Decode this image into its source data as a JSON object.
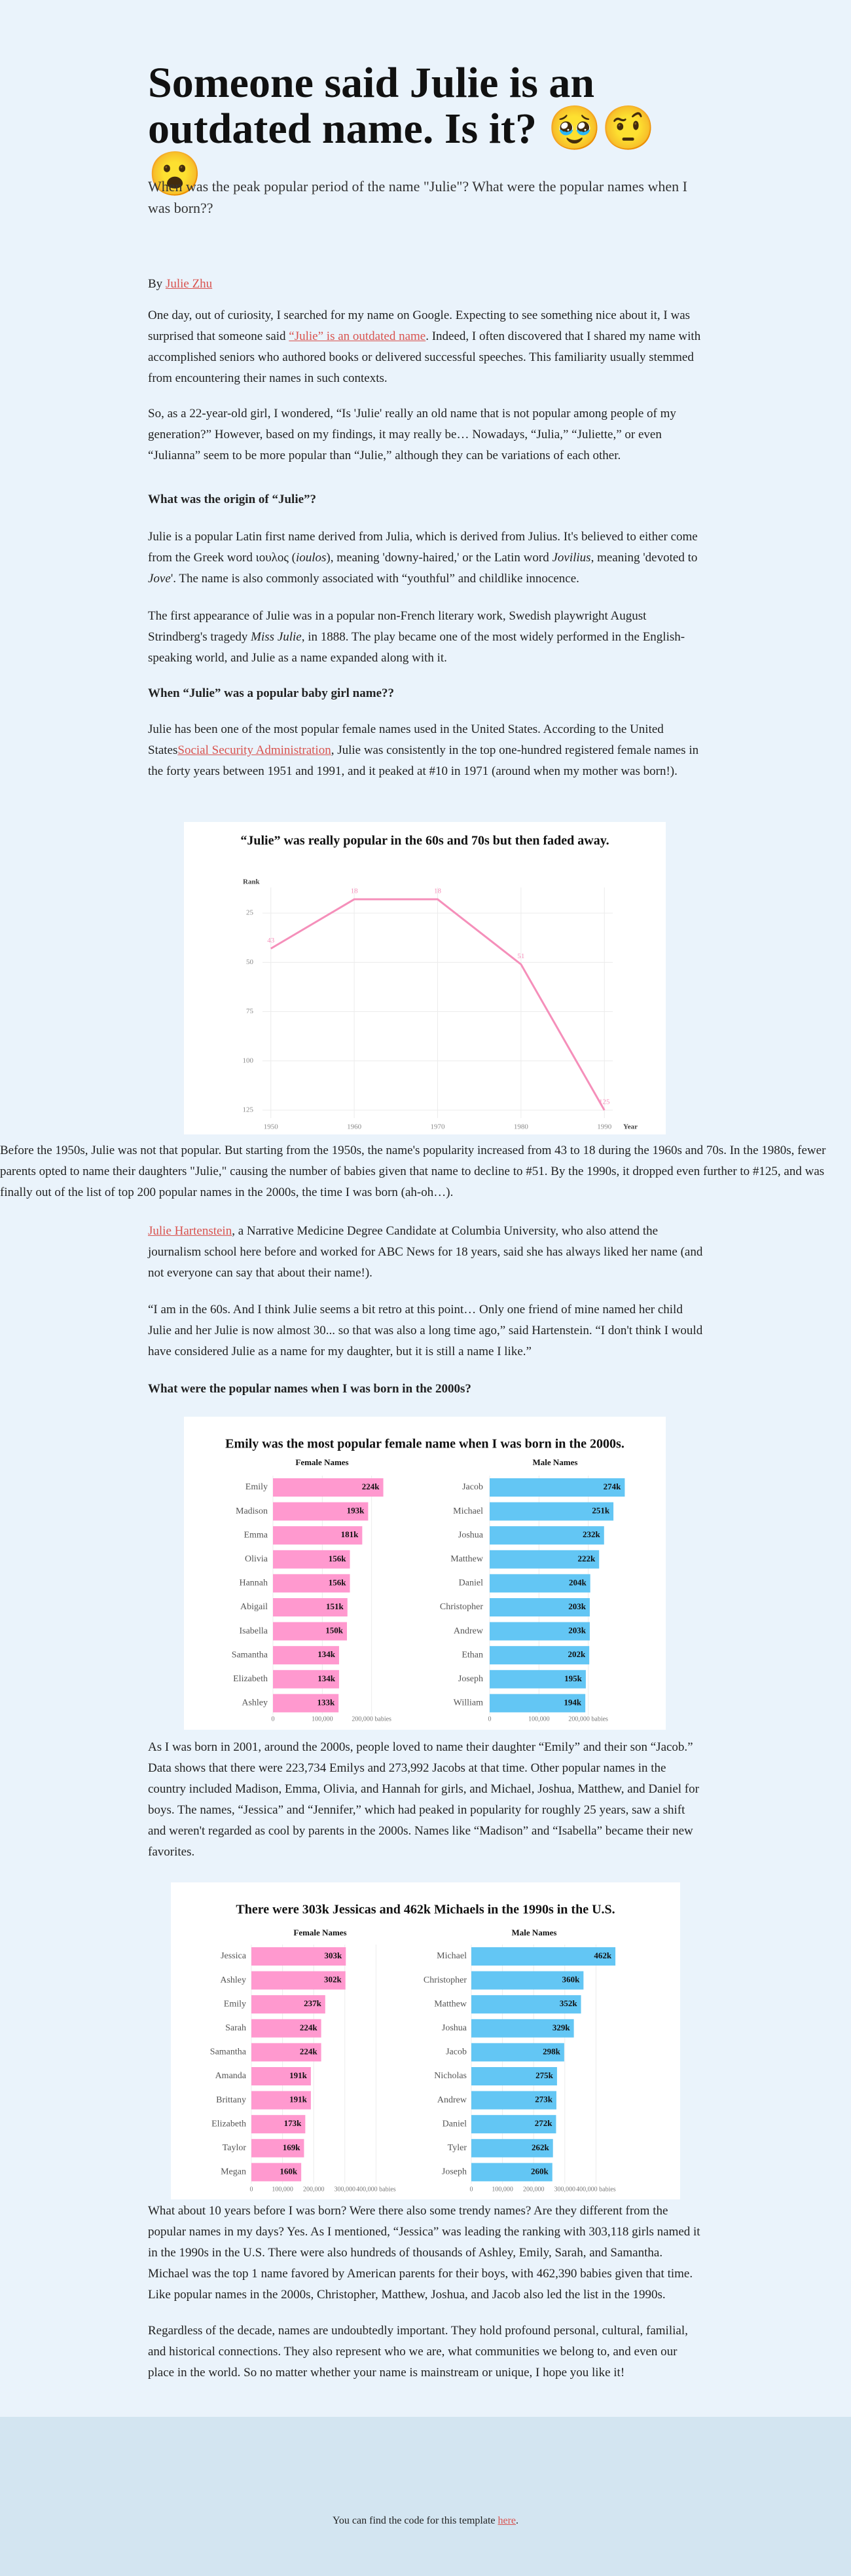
{
  "header": {
    "title": "Someone said Julie is an outdated name. Is it? 🥹🤨😮",
    "subtitle": "When was the peak popular period of the name \"Julie\"? What were the popular names when I was born??"
  },
  "byline": [
    {
      "text": "By "
    },
    {
      "text": "Julie Zhu",
      "style": "link"
    }
  ],
  "headings": [
    "What was the origin of “Julie”?",
    "When “Julie” was a popular baby girl name??",
    "What were the popular names when I was born in the 2000s?"
  ],
  "paragraphs": [
    [
      {
        "text": "One day, out of curiosity, I searched for my name on Google. Expecting to see something nice about it, I was surprised that someone said "
      },
      {
        "text": "“Julie” is an outdated name",
        "style": "link"
      },
      {
        "text": ". Indeed, I often discovered that I shared my name with accomplished seniors who authored books or delivered successful speeches. This familiarity usually stemmed from encountering their names in such contexts."
      }
    ],
    [
      {
        "text": "So, as a 22-year-old girl, I wondered, “Is 'Julie' really an old name that is not popular among people of my generation?” However, based on my findings, it may really be… Nowadays, “Julia,” “Juliette,” or even “Julianna” seem to be more popular than “Julie,” although they can be variations of each other."
      }
    ],
    [
      {
        "text": "Julie is a popular Latin first name derived from Julia, which is derived from Julius. It's believed to either come from the Greek word ιουλος ("
      },
      {
        "text": "ioulos",
        "style": "italic"
      },
      {
        "text": "), meaning 'downy-haired,' or the Latin word "
      },
      {
        "text": "Jovilius",
        "style": "italic"
      },
      {
        "text": ", meaning 'devoted to "
      },
      {
        "text": "Jove",
        "style": "italic"
      },
      {
        "text": "'. The name is also commonly associated with “youthful” and childlike innocence."
      }
    ],
    [
      {
        "text": "The first appearance of Julie was in a popular non-French literary work, Swedish playwright August Strindberg's tragedy "
      },
      {
        "text": "Miss Julie",
        "style": "italic"
      },
      {
        "text": ", in 1888. The play became one of the most widely performed in the English-speaking world, and Julie as a name expanded along with it."
      }
    ],
    [
      {
        "text": "Julie has been one of the most popular female names used in the United States. According to the United States"
      },
      {
        "text": "Social Security Administration",
        "style": "link"
      },
      {
        "text": ", Julie was consistently in the top one-hundred registered female names in the forty years between 1951 and 1991, and it peaked at #10 in 1971 (around when my mother was born!)."
      }
    ],
    [
      {
        "text": "Before the 1950s, Julie was not that popular. But starting from the 1950s, the name's popularity increased from 43 to 18 during the 1960s and 70s. In the 1980s, fewer parents opted to name their daughters \"Julie,\" causing the number of babies given that name to decline to #51. By the 1990s, it dropped even further to #125, and was finally out of the list of top 200 popular names in the 2000s, the time I was born (ah-oh…)."
      }
    ],
    [
      {
        "text": "Julie Hartenstein",
        "style": "link"
      },
      {
        "text": ", a Narrative Medicine Degree Candidate at Columbia University, who also attend the journalism school here before and worked for ABC News for 18 years, said she has always liked her name (and not everyone can say that about their name!)."
      }
    ],
    [
      {
        "text": "“I am in the 60s. And I think Julie seems a bit retro at this point… Only one friend of mine named her child Julie and her Julie is now almost 30... so that was also a long time ago,” said Hartenstein. “I don't think I would have considered Julie as a name for my daughter, but it is still a name I like.”"
      }
    ],
    [
      {
        "text": "As I was born in 2001, around the 2000s, people loved to name their daughter “Emily” and their son “Jacob.” Data shows that there were 223,734 Emilys and 273,992 Jacobs at that time. Other popular names in the country included Madison, Emma, Olivia, and Hannah for girls, and Michael, Joshua, Matthew, and Daniel for boys. The names, “Jessica” and “Jennifer,” which had peaked in popularity for roughly 25 years, saw a shift and weren't regarded as cool by parents in the 2000s. Names like “Madison” and “Isabella” became their new favorites."
      }
    ],
    [
      {
        "text": "What about 10 years before I was born? Were there also some trendy names? Are they different from the popular names in my days? Yes. As I mentioned, “Jessica” was leading the ranking with 303,118 girls named it in the 1990s in the U.S. There were also hundreds of thousands of Ashley, Emily, Sarah, and Samantha. Michael was the top 1 name favored by American parents for their boys, with 462,390 babies given that time. Like popular names in the 2000s, Christopher, Matthew, Joshua, and Jacob also led the list in the 1990s."
      }
    ],
    [
      {
        "text": "Regardless of the decade, names are undoubtedly important. They hold profound personal, cultural, familial, and historical connections. They also represent who we are, what communities we belong to, and even our place in the world. So no matter whether your name is mainstream or unique, I hope you like it!"
      }
    ]
  ],
  "chart_data": [
    {
      "type": "line",
      "title": "“Julie” was really popular in the 60s and 70s but then faded away.",
      "y_label": "Rank",
      "x_label": "Year",
      "x": [
        1950,
        1960,
        1970,
        1980,
        1990
      ],
      "values": [
        43,
        18,
        18,
        51,
        125
      ],
      "color": "#f58fba",
      "xlim": [
        1949,
        1991
      ],
      "xticks": [
        1950,
        1960,
        1970,
        1980,
        1990
      ],
      "ylim": [
        129,
        12
      ],
      "yticks": [
        25,
        50,
        75,
        100,
        125
      ],
      "grid": true
    },
    {
      "type": "bar",
      "orientation": "horizontal",
      "title": "Emily was the most popular female name when I was born in the 2000s.",
      "xlim": [
        0,
        300000
      ],
      "xticks": [
        0,
        {
          "value": 100000,
          "label": "100,000"
        },
        {
          "value": 200000,
          "label": "200,000 babies"
        }
      ],
      "grid": true,
      "panels": [
        {
          "title": "Female Names",
          "color": "#ff99cf",
          "categories": [
            "Emily",
            "Madison",
            "Emma",
            "Olivia",
            "Hannah",
            "Abigail",
            "Isabella",
            "Samantha",
            "Elizabeth",
            "Ashley"
          ],
          "values": [
            223734,
            193000,
            181000,
            156000,
            156000,
            151000,
            150000,
            134000,
            134000,
            133000
          ],
          "value_labels": [
            "224k",
            "193k",
            "181k",
            "156k",
            "156k",
            "151k",
            "150k",
            "134k",
            "134k",
            "133k"
          ]
        },
        {
          "title": "Male Names",
          "color": "#63c6f4",
          "categories": [
            "Jacob",
            "Michael",
            "Joshua",
            "Matthew",
            "Daniel",
            "Christopher",
            "Andrew",
            "Ethan",
            "Joseph",
            "William"
          ],
          "values": [
            273992,
            251000,
            232000,
            222000,
            204000,
            203000,
            203000,
            202000,
            195000,
            194000
          ],
          "value_labels": [
            "274k",
            "251k",
            "232k",
            "222k",
            "204k",
            "203k",
            "203k",
            "202k",
            "195k",
            "194k"
          ]
        }
      ]
    },
    {
      "type": "bar",
      "orientation": "horizontal",
      "title": "There were 303k Jessicas and 462k Michaels in the 1990s in the U.S.",
      "xlim": [
        0,
        500000
      ],
      "xticks": [
        0,
        {
          "value": 100000,
          "label": "100,000"
        },
        {
          "value": 200000,
          "label": "200,000"
        },
        {
          "value": 300000,
          "label": "300,000"
        },
        {
          "value": 400000,
          "label": "400,000 babies"
        }
      ],
      "grid": true,
      "panels": [
        {
          "title": "Female Names",
          "color": "#ff99cf",
          "categories": [
            "Jessica",
            "Ashley",
            "Emily",
            "Sarah",
            "Samantha",
            "Amanda",
            "Brittany",
            "Elizabeth",
            "Taylor",
            "Megan"
          ],
          "values": [
            303118,
            302000,
            237000,
            224000,
            224000,
            191000,
            191000,
            173000,
            169000,
            160000
          ],
          "value_labels": [
            "303k",
            "302k",
            "237k",
            "224k",
            "224k",
            "191k",
            "191k",
            "173k",
            "169k",
            "160k"
          ]
        },
        {
          "title": "Male Names",
          "color": "#63c6f4",
          "categories": [
            "Michael",
            "Christopher",
            "Matthew",
            "Joshua",
            "Jacob",
            "Nicholas",
            "Andrew",
            "Daniel",
            "Tyler",
            "Joseph"
          ],
          "values": [
            462390,
            360000,
            352000,
            329000,
            298000,
            275000,
            273000,
            272000,
            262000,
            260000
          ],
          "value_labels": [
            "462k",
            "360k",
            "352k",
            "329k",
            "298k",
            "275k",
            "273k",
            "272k",
            "262k",
            "260k"
          ]
        }
      ]
    }
  ],
  "footer": [
    {
      "text": "You can find the code for this template "
    },
    {
      "text": "here",
      "style": "link"
    },
    {
      "text": "."
    }
  ]
}
